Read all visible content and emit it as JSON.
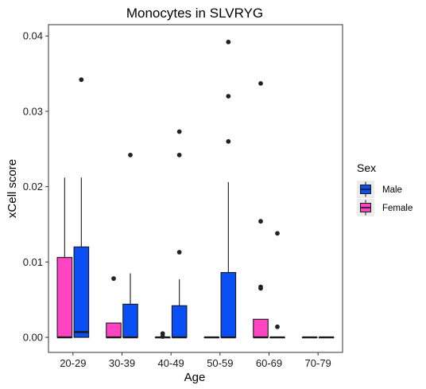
{
  "chart_data": {
    "type": "boxplot",
    "title": "Monocytes in SLVRYG",
    "xlabel": "Age",
    "ylabel": "xCell score",
    "categories": [
      "20-29",
      "30-39",
      "40-49",
      "50-59",
      "60-69",
      "70-79"
    ],
    "ylim": [
      -0.002,
      0.0415
    ],
    "yticks": [
      0.0,
      0.01,
      0.02,
      0.03,
      0.04
    ],
    "ytick_labels": [
      "0.00",
      "0.01",
      "0.02",
      "0.03",
      "0.04"
    ],
    "grid": false,
    "legend": {
      "title": "Sex",
      "position": "right",
      "entries": [
        "Male",
        "Female"
      ]
    },
    "colors": {
      "Male": "#0a4ff5",
      "Female": "#ff44c1"
    },
    "series": [
      {
        "name": "Female",
        "boxes": [
          {
            "category": "20-29",
            "min": 0.0,
            "q1": 0.0,
            "median": 0.0,
            "q3": 0.0106,
            "max": 0.0212,
            "outliers": []
          },
          {
            "category": "30-39",
            "min": 0.0,
            "q1": 0.0,
            "median": 0.0,
            "q3": 0.0019,
            "max": 0.0019,
            "outliers": [
              0.0078
            ]
          },
          {
            "category": "40-49",
            "min": 0.0,
            "q1": 0.0,
            "median": 0.0,
            "q3": 0.0,
            "max": 0.0,
            "outliers": [
              0.0005,
              0.0001
            ]
          },
          {
            "category": "50-59",
            "min": 0.0,
            "q1": 0.0,
            "median": 0.0,
            "q3": 0.0,
            "max": 0.0,
            "outliers": []
          },
          {
            "category": "60-69",
            "min": 0.0,
            "q1": 0.0,
            "median": 0.0,
            "q3": 0.0024,
            "max": 0.0024,
            "outliers": [
              0.0337,
              0.0154,
              0.0067,
              0.0065
            ]
          },
          {
            "category": "70-79",
            "min": 0.0,
            "q1": 0.0,
            "median": 0.0,
            "q3": 0.0,
            "max": 0.0,
            "outliers": []
          }
        ]
      },
      {
        "name": "Male",
        "boxes": [
          {
            "category": "20-29",
            "min": 0.0,
            "q1": 0.0,
            "median": 0.0007,
            "q3": 0.012,
            "max": 0.0212,
            "outliers": [
              0.0342
            ]
          },
          {
            "category": "30-39",
            "min": 0.0,
            "q1": 0.0,
            "median": 0.0,
            "q3": 0.0044,
            "max": 0.0085,
            "outliers": [
              0.0242
            ]
          },
          {
            "category": "40-49",
            "min": 0.0,
            "q1": 0.0,
            "median": 0.0,
            "q3": 0.0042,
            "max": 0.0077,
            "outliers": [
              0.0273,
              0.0242,
              0.0113
            ]
          },
          {
            "category": "50-59",
            "min": 0.0,
            "q1": 0.0,
            "median": 0.0,
            "q3": 0.0086,
            "max": 0.0206,
            "outliers": [
              0.0392,
              0.032,
              0.026
            ]
          },
          {
            "category": "60-69",
            "min": 0.0,
            "q1": 0.0,
            "median": 0.0,
            "q3": 0.0,
            "max": 0.0,
            "outliers": [
              0.0138,
              0.0014
            ]
          },
          {
            "category": "70-79",
            "min": 0.0,
            "q1": 0.0,
            "median": 0.0,
            "q3": 0.0,
            "max": 0.0,
            "outliers": []
          }
        ]
      }
    ]
  }
}
